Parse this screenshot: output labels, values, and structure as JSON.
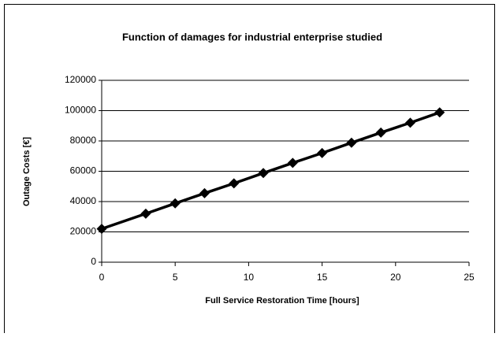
{
  "chart_data": {
    "type": "line",
    "title": "Function of damages for industrial enterprise studied",
    "x_label": "Full Service Restoration Time [hours]",
    "y_label": "Outage Costs [€]",
    "x": [
      0,
      3,
      5,
      7,
      9,
      11,
      13,
      15,
      17,
      19,
      21,
      23
    ],
    "series": [
      {
        "name": "Outage Costs",
        "color": "#000000",
        "values": [
          22000,
          32000,
          38800,
          45500,
          52000,
          58800,
          65500,
          72000,
          78800,
          85500,
          92000,
          98800
        ]
      }
    ],
    "xlim": [
      0,
      25
    ],
    "xticks": [
      0,
      5,
      10,
      15,
      20,
      25
    ],
    "ylim": [
      0,
      120000
    ],
    "yticks": [
      0,
      20000,
      40000,
      60000,
      80000,
      100000,
      120000
    ],
    "grid": true
  }
}
